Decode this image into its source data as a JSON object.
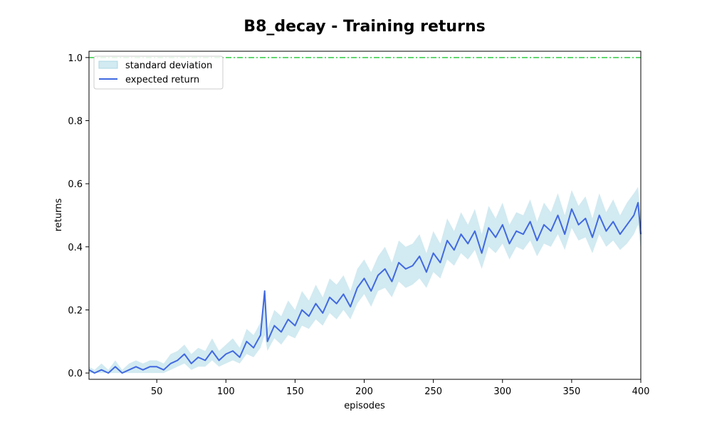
{
  "chart_data": {
    "type": "line",
    "title": "B8_decay - Training returns",
    "xlabel": "episodes",
    "ylabel": "returns",
    "xlim": [
      1,
      400
    ],
    "ylim": [
      -0.02,
      1.02
    ],
    "xticks": [
      50,
      100,
      150,
      200,
      250,
      300,
      350,
      400
    ],
    "xtick_labels": [
      "50",
      "100",
      "150",
      "200",
      "250",
      "300",
      "350",
      "400"
    ],
    "yticks": [
      0.0,
      0.2,
      0.4,
      0.6,
      0.8,
      1.0
    ],
    "ytick_labels": [
      "0.0",
      "0.2",
      "0.4",
      "0.6",
      "0.8",
      "1.0"
    ],
    "legend": {
      "placement": "top-left",
      "entries": [
        "standard deviation",
        "expected return"
      ]
    },
    "reference_line": {
      "y": 1.0,
      "style": "dash-dot",
      "color": "#2ecc40"
    },
    "colors": {
      "line": "#4169e1",
      "band": "#add8e6",
      "reference": "#2ecc40"
    },
    "series": [
      {
        "name": "expected return",
        "x": [
          1,
          5,
          10,
          15,
          20,
          25,
          30,
          35,
          40,
          45,
          50,
          55,
          60,
          65,
          70,
          75,
          80,
          85,
          90,
          95,
          100,
          105,
          110,
          115,
          120,
          125,
          128,
          130,
          135,
          140,
          145,
          150,
          155,
          160,
          165,
          170,
          175,
          180,
          185,
          190,
          195,
          200,
          205,
          210,
          215,
          220,
          225,
          230,
          235,
          240,
          245,
          250,
          255,
          260,
          265,
          270,
          275,
          280,
          285,
          290,
          295,
          300,
          305,
          310,
          315,
          320,
          325,
          330,
          335,
          340,
          345,
          350,
          355,
          360,
          365,
          370,
          375,
          380,
          385,
          390,
          395,
          398,
          400
        ],
        "y": [
          0.01,
          0.0,
          0.01,
          0.0,
          0.02,
          0.0,
          0.01,
          0.02,
          0.01,
          0.02,
          0.02,
          0.01,
          0.03,
          0.04,
          0.06,
          0.03,
          0.05,
          0.04,
          0.07,
          0.04,
          0.06,
          0.07,
          0.05,
          0.1,
          0.08,
          0.12,
          0.26,
          0.1,
          0.15,
          0.13,
          0.17,
          0.15,
          0.2,
          0.18,
          0.22,
          0.19,
          0.24,
          0.22,
          0.25,
          0.21,
          0.27,
          0.3,
          0.26,
          0.31,
          0.33,
          0.29,
          0.35,
          0.33,
          0.34,
          0.37,
          0.32,
          0.38,
          0.35,
          0.42,
          0.39,
          0.44,
          0.41,
          0.45,
          0.38,
          0.46,
          0.43,
          0.47,
          0.41,
          0.45,
          0.44,
          0.48,
          0.42,
          0.47,
          0.45,
          0.5,
          0.44,
          0.52,
          0.47,
          0.49,
          0.43,
          0.5,
          0.45,
          0.48,
          0.44,
          0.47,
          0.5,
          0.54,
          0.44
        ]
      },
      {
        "name": "standard deviation",
        "x": [
          1,
          5,
          10,
          15,
          20,
          25,
          30,
          35,
          40,
          45,
          50,
          55,
          60,
          65,
          70,
          75,
          80,
          85,
          90,
          95,
          100,
          105,
          110,
          115,
          120,
          125,
          128,
          130,
          135,
          140,
          145,
          150,
          155,
          160,
          165,
          170,
          175,
          180,
          185,
          190,
          195,
          200,
          205,
          210,
          215,
          220,
          225,
          230,
          235,
          240,
          245,
          250,
          255,
          260,
          265,
          270,
          275,
          280,
          285,
          290,
          295,
          300,
          305,
          310,
          315,
          320,
          325,
          330,
          335,
          340,
          345,
          350,
          355,
          360,
          365,
          370,
          375,
          380,
          385,
          390,
          395,
          398,
          400
        ],
        "lower": [
          0.0,
          0.0,
          0.0,
          0.0,
          0.0,
          0.0,
          0.0,
          0.0,
          0.0,
          0.0,
          0.0,
          0.0,
          0.01,
          0.02,
          0.03,
          0.01,
          0.02,
          0.02,
          0.04,
          0.02,
          0.03,
          0.04,
          0.03,
          0.06,
          0.05,
          0.08,
          0.12,
          0.07,
          0.11,
          0.09,
          0.12,
          0.11,
          0.15,
          0.14,
          0.17,
          0.15,
          0.19,
          0.17,
          0.2,
          0.17,
          0.22,
          0.25,
          0.21,
          0.26,
          0.27,
          0.24,
          0.29,
          0.27,
          0.28,
          0.3,
          0.27,
          0.32,
          0.3,
          0.36,
          0.34,
          0.38,
          0.36,
          0.39,
          0.33,
          0.4,
          0.38,
          0.41,
          0.36,
          0.4,
          0.39,
          0.42,
          0.37,
          0.41,
          0.4,
          0.44,
          0.39,
          0.46,
          0.42,
          0.43,
          0.38,
          0.44,
          0.4,
          0.42,
          0.39,
          0.41,
          0.44,
          0.47,
          0.39
        ],
        "upper": [
          0.02,
          0.01,
          0.03,
          0.01,
          0.04,
          0.01,
          0.03,
          0.04,
          0.03,
          0.04,
          0.04,
          0.03,
          0.06,
          0.07,
          0.09,
          0.06,
          0.08,
          0.07,
          0.11,
          0.07,
          0.09,
          0.11,
          0.08,
          0.14,
          0.12,
          0.16,
          0.26,
          0.14,
          0.2,
          0.18,
          0.23,
          0.2,
          0.26,
          0.23,
          0.28,
          0.24,
          0.3,
          0.28,
          0.31,
          0.26,
          0.33,
          0.36,
          0.32,
          0.37,
          0.4,
          0.35,
          0.42,
          0.4,
          0.41,
          0.44,
          0.38,
          0.45,
          0.41,
          0.49,
          0.45,
          0.51,
          0.47,
          0.52,
          0.44,
          0.53,
          0.49,
          0.54,
          0.47,
          0.51,
          0.5,
          0.55,
          0.48,
          0.54,
          0.51,
          0.57,
          0.5,
          0.58,
          0.53,
          0.56,
          0.49,
          0.57,
          0.51,
          0.55,
          0.5,
          0.54,
          0.57,
          0.59,
          0.5
        ]
      }
    ]
  }
}
